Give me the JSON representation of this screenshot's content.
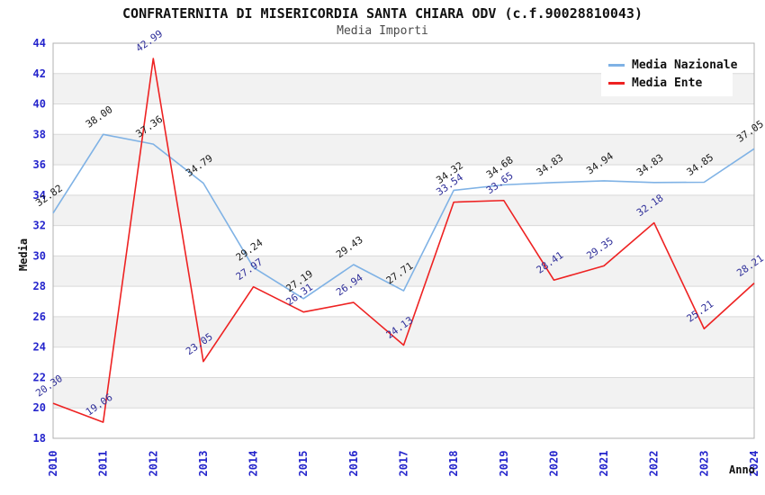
{
  "header": {
    "title": "CONFRATERNITA DI MISERICORDIA SANTA CHIARA ODV (c.f.90028810043)",
    "subtitle": "Media Importi"
  },
  "chart_data": {
    "type": "line",
    "title": "CONFRATERNITA DI MISERICORDIA SANTA CHIARA ODV (c.f.90028810043)",
    "subtitle": "Media Importi",
    "xlabel": "Anno",
    "ylabel": "Media",
    "x": [
      "2010",
      "2011",
      "2012",
      "2013",
      "2014",
      "2015",
      "2016",
      "2017",
      "2018",
      "2019",
      "2020",
      "2021",
      "2022",
      "2023",
      "2024"
    ],
    "series": [
      {
        "name": "Media Nazionale",
        "color": "#7FB2E5",
        "label_color": "#1a1a1a",
        "values": [
          32.82,
          38.0,
          37.36,
          34.79,
          29.24,
          27.19,
          29.43,
          27.71,
          34.32,
          34.68,
          34.83,
          34.94,
          34.83,
          34.85,
          37.05
        ]
      },
      {
        "name": "Media Ente",
        "color": "#ee2222",
        "label_color": "#2e2e99",
        "values": [
          20.3,
          19.06,
          42.99,
          23.05,
          27.97,
          26.31,
          26.94,
          24.13,
          33.54,
          33.65,
          28.41,
          29.35,
          32.18,
          25.21,
          28.21
        ]
      }
    ],
    "ylim": [
      18,
      44
    ],
    "ytick_step": 2,
    "yticks": [
      18,
      20,
      22,
      24,
      26,
      28,
      30,
      32,
      34,
      36,
      38,
      40,
      42,
      44
    ],
    "grid": "horizontal gridlines with alternating shaded bands",
    "legend_position": "top-right",
    "value_label_format": "2 decimals, rotated -35deg",
    "colors": {
      "band": "#f2f2f2",
      "gridline": "#d9d9d9",
      "border": "#b0b0b0",
      "tick_label": "#2424cc",
      "title": "#111111",
      "subtitle": "#4a4a4a",
      "background": "#ffffff"
    }
  }
}
